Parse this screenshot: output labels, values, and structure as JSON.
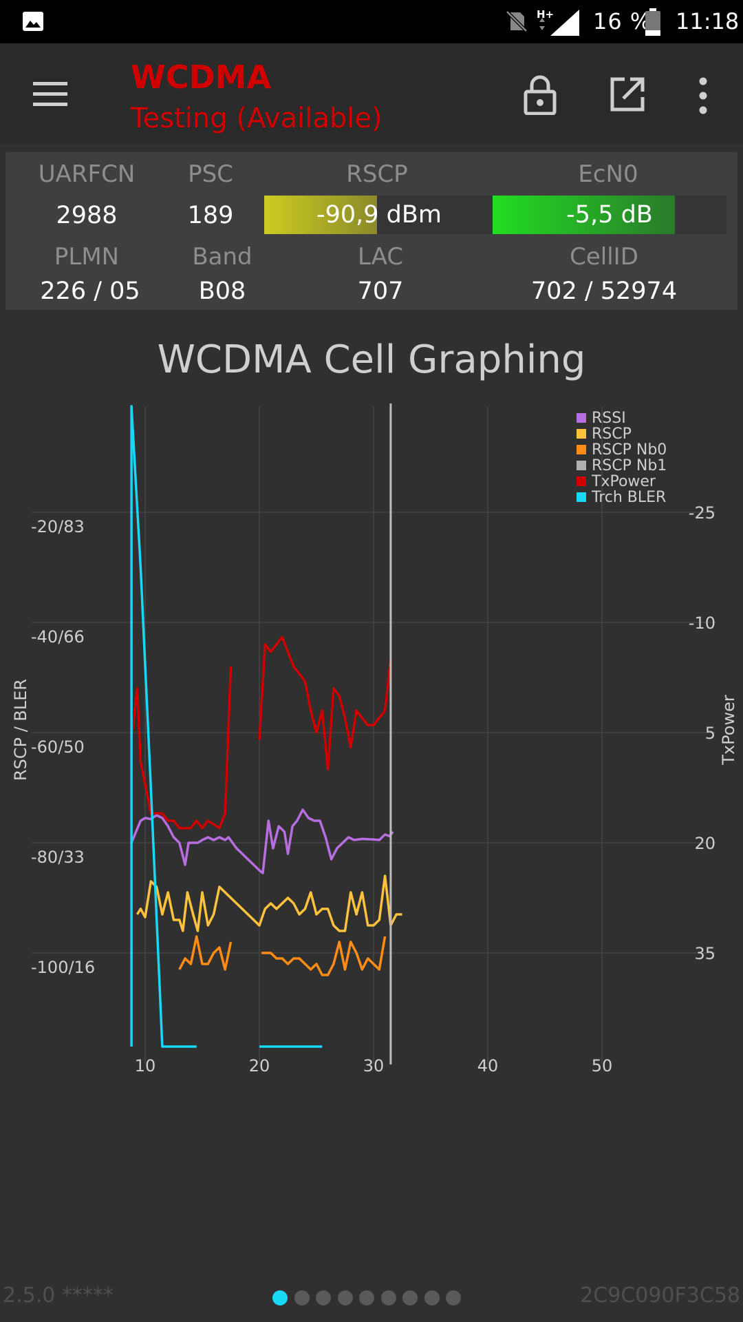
{
  "status_bar": {
    "battery_percent": "16 %",
    "time": "11:18",
    "network_type": "H+",
    "icons": [
      "image-icon",
      "no-sim-icon",
      "signal-icon",
      "battery-icon"
    ]
  },
  "app_bar": {
    "title": "WCDMA",
    "subtitle": "Testing (Available)",
    "icons": [
      "menu-icon",
      "lock-icon",
      "open-external-icon",
      "more-vert-icon"
    ],
    "accent_color": "#d10000"
  },
  "cell_info": {
    "labels": {
      "uarfcn": "UARFCN",
      "psc": "PSC",
      "rscp": "RSCP",
      "ecn0": "EcN0",
      "plmn": "PLMN",
      "band": "Band",
      "lac": "LAC",
      "cellid": "CellID"
    },
    "values": {
      "uarfcn": "2988",
      "psc": "189",
      "rscp": "-90,9 dBm",
      "ecn0": "-5,5 dB",
      "plmn": "226 / 05",
      "band": "B08",
      "lac": "707",
      "cellid": "702 / 52974"
    },
    "rscp_bar_fill": 0.49,
    "ecn0_bar_fill": 0.78
  },
  "chart_title": "WCDMA Cell Graphing",
  "chart_data": {
    "type": "line",
    "title": "WCDMA Cell Graphing",
    "ylabel": "RSCP / BLER",
    "y2label": "TxPower",
    "xlim": [
      9,
      60
    ],
    "ylim": [
      -117,
      2
    ],
    "y2lim": [
      48,
      -41
    ],
    "x_ticks": [
      10,
      20,
      30,
      40,
      50
    ],
    "y_ticks": [
      -20,
      -40,
      -60,
      -80,
      -100
    ],
    "y_tick_labels": [
      "-20/83",
      "-40/66",
      "-60/50",
      "-80/33",
      "-100/16"
    ],
    "y2_ticks": [
      -25,
      -10,
      5,
      20,
      35
    ],
    "y2_tick_labels": [
      "-25",
      "-10",
      "5",
      "20",
      "35"
    ],
    "cursor_x": 31.5,
    "grid": true,
    "legend_position": "top-right",
    "series": [
      {
        "name": "RSSI",
        "color": "#b86ee0",
        "axis": "left",
        "points": [
          [
            8.8,
            -80
          ],
          [
            9.2,
            -78
          ],
          [
            9.6,
            -76
          ],
          [
            10.0,
            -75.5
          ],
          [
            10.5,
            -75.7
          ],
          [
            11.0,
            -75
          ],
          [
            11.5,
            -75.5
          ],
          [
            12.0,
            -77
          ],
          [
            12.5,
            -79
          ],
          [
            13.0,
            -80
          ],
          [
            13.5,
            -84
          ],
          [
            13.8,
            -80
          ],
          [
            14.2,
            -80
          ],
          [
            14.6,
            -80
          ],
          [
            15.0,
            -79.5
          ],
          [
            15.5,
            -79
          ],
          [
            16.0,
            -79.5
          ],
          [
            16.5,
            -79
          ],
          [
            17.0,
            -79.5
          ],
          [
            17.3,
            -79
          ],
          [
            18.0,
            -81
          ],
          [
            19.0,
            -83
          ],
          [
            20.0,
            -85
          ],
          [
            20.3,
            -85.5
          ],
          [
            20.8,
            -76
          ],
          [
            21.2,
            -81
          ],
          [
            21.7,
            -77
          ],
          [
            22.2,
            -78
          ],
          [
            22.5,
            -82
          ],
          [
            22.9,
            -77
          ],
          [
            23.3,
            -76
          ],
          [
            23.8,
            -74
          ],
          [
            24.3,
            -75.5
          ],
          [
            24.8,
            -76
          ],
          [
            25.3,
            -76
          ],
          [
            25.8,
            -79
          ],
          [
            26.3,
            -83
          ],
          [
            26.8,
            -81
          ],
          [
            27.3,
            -80
          ],
          [
            27.8,
            -79
          ],
          [
            28.3,
            -79.5
          ],
          [
            29.0,
            -79.3
          ],
          [
            30.0,
            -79.4
          ],
          [
            30.5,
            -79.5
          ],
          [
            31.0,
            -78.5
          ],
          [
            31.4,
            -78.8
          ],
          [
            31.7,
            -78
          ]
        ]
      },
      {
        "name": "RSCP",
        "color": "#ffc23d",
        "axis": "left",
        "points": [
          [
            9.3,
            -93
          ],
          [
            9.6,
            -92
          ],
          [
            10.0,
            -93.5
          ],
          [
            10.5,
            -87
          ],
          [
            11.0,
            -88
          ],
          [
            11.5,
            -93
          ],
          [
            12.0,
            -89
          ],
          [
            12.5,
            -94
          ],
          [
            13.0,
            -94
          ],
          [
            13.3,
            -96
          ],
          [
            13.7,
            -89
          ],
          [
            14.2,
            -93
          ],
          [
            14.6,
            -96
          ],
          [
            15.0,
            -89
          ],
          [
            15.5,
            -95
          ],
          [
            16.0,
            -93
          ],
          [
            16.5,
            -88
          ],
          [
            17.0,
            -89
          ],
          [
            18.0,
            -91
          ],
          [
            19.0,
            -93
          ],
          [
            20.0,
            -95
          ],
          [
            20.5,
            -92
          ],
          [
            21.0,
            -91
          ],
          [
            21.5,
            -92
          ],
          [
            22.0,
            -91
          ],
          [
            22.5,
            -90
          ],
          [
            23.0,
            -91
          ],
          [
            23.5,
            -93
          ],
          [
            24.0,
            -92
          ],
          [
            24.5,
            -89
          ],
          [
            25.0,
            -93
          ],
          [
            25.5,
            -92
          ],
          [
            26.0,
            -92
          ],
          [
            26.5,
            -95
          ],
          [
            27.0,
            -96
          ],
          [
            27.5,
            -96
          ],
          [
            28.0,
            -89
          ],
          [
            28.5,
            -93
          ],
          [
            29.0,
            -89
          ],
          [
            29.5,
            -95
          ],
          [
            30.0,
            -95
          ],
          [
            30.5,
            -94
          ],
          [
            31.0,
            -86
          ],
          [
            31.5,
            -95
          ],
          [
            32.0,
            -93
          ],
          [
            32.5,
            -93
          ]
        ]
      },
      {
        "name": "RSCP Nb0",
        "color": "#ff8c17",
        "axis": "left",
        "points": [
          [
            13.0,
            -103
          ],
          [
            13.5,
            -101
          ],
          [
            14.0,
            -102
          ],
          [
            14.5,
            -97
          ],
          [
            15.0,
            -102
          ],
          [
            15.5,
            -102
          ],
          [
            16.0,
            -100
          ],
          [
            16.5,
            -99
          ],
          [
            17.0,
            -103
          ],
          [
            17.5,
            -98
          ]
        ]
      },
      {
        "name": "RSCP Nb0",
        "color": "#ff8c17",
        "axis": "left",
        "points": [
          [
            20.2,
            -100
          ],
          [
            21.0,
            -100
          ],
          [
            21.5,
            -101
          ],
          [
            22.0,
            -101
          ],
          [
            22.5,
            -102
          ],
          [
            23.0,
            -101
          ],
          [
            23.5,
            -101
          ],
          [
            24.0,
            -102
          ],
          [
            24.5,
            -103
          ],
          [
            25.0,
            -102
          ],
          [
            25.5,
            -104
          ],
          [
            26.0,
            -104
          ],
          [
            26.5,
            -102
          ],
          [
            27.0,
            -98
          ],
          [
            27.5,
            -103
          ],
          [
            28.0,
            -98
          ],
          [
            28.5,
            -100
          ],
          [
            29.0,
            -103
          ],
          [
            29.5,
            -101
          ],
          [
            30.0,
            -102
          ],
          [
            30.5,
            -103
          ],
          [
            31.0,
            -97
          ]
        ]
      },
      {
        "name": "TxPower",
        "color": "#d10000",
        "axis": "right",
        "points": [
          [
            8.8,
            6
          ],
          [
            9.3,
            -1
          ],
          [
            9.6,
            9
          ],
          [
            10.0,
            12
          ],
          [
            10.5,
            16
          ],
          [
            11.0,
            16
          ],
          [
            11.5,
            16
          ],
          [
            12.0,
            17
          ],
          [
            12.5,
            17
          ],
          [
            13.0,
            18
          ],
          [
            13.5,
            18
          ],
          [
            14.0,
            18
          ],
          [
            14.5,
            17
          ],
          [
            15.0,
            18
          ],
          [
            15.5,
            17
          ],
          [
            16.0,
            17.5
          ],
          [
            16.5,
            18
          ],
          [
            17.0,
            16
          ],
          [
            17.5,
            -4
          ]
        ]
      },
      {
        "name": "TxPower",
        "color": "#d10000",
        "axis": "right",
        "points": [
          [
            20.0,
            6
          ],
          [
            20.5,
            -7
          ],
          [
            21.0,
            -6
          ],
          [
            21.5,
            -7
          ],
          [
            22.0,
            -8
          ],
          [
            22.5,
            -6
          ],
          [
            23.0,
            -4
          ],
          [
            23.5,
            -3
          ],
          [
            24.0,
            -2
          ],
          [
            24.5,
            2
          ],
          [
            25.0,
            5
          ],
          [
            25.5,
            2
          ],
          [
            26.0,
            10
          ],
          [
            26.5,
            -1
          ],
          [
            27.0,
            0
          ],
          [
            27.5,
            3
          ],
          [
            28.0,
            7
          ],
          [
            28.5,
            2
          ],
          [
            29.0,
            3
          ],
          [
            29.5,
            4
          ],
          [
            30.0,
            4
          ],
          [
            30.5,
            3
          ],
          [
            31.0,
            2
          ],
          [
            31.5,
            -5
          ]
        ]
      },
      {
        "name": "Trch BLER",
        "color": "#19d8f5",
        "axis": "left",
        "points": [
          [
            8.8,
            -117
          ],
          [
            8.8,
            2
          ],
          [
            9.6,
            -30
          ],
          [
            10.5,
            -70
          ],
          [
            11.5,
            -117
          ],
          [
            14.5,
            -117
          ]
        ]
      },
      {
        "name": "Trch BLER",
        "color": "#19d8f5",
        "axis": "left",
        "points": [
          [
            20.0,
            -117
          ],
          [
            25.5,
            -117
          ]
        ]
      }
    ],
    "legend": [
      {
        "name": "RSSI",
        "color": "#b86ee0"
      },
      {
        "name": "RSCP",
        "color": "#ffc23d"
      },
      {
        "name": "RSCP Nb0",
        "color": "#ff8c17"
      },
      {
        "name": "RSCP Nb1",
        "color": "#b0b0b0"
      },
      {
        "name": "TxPower",
        "color": "#d10000"
      },
      {
        "name": "Trch BLER",
        "color": "#19d8f5"
      }
    ]
  },
  "footer": {
    "version": "2.5.0 *****",
    "device_id": "2C9C090F3C58",
    "page_count": 9,
    "active_page": 1
  }
}
